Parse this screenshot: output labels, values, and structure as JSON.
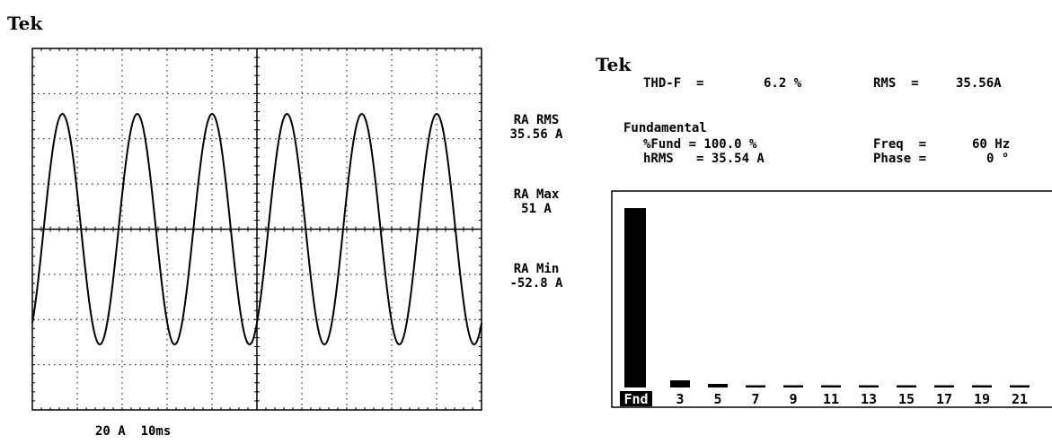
{
  "left_panel": {
    "title": "Tek",
    "scale_label": "20 A  10ms",
    "readouts": {
      "rms_label": "RA RMS",
      "rms_value": "35.56 A",
      "max_label": "RA Max",
      "max_value": "51 A",
      "min_label": "RA Min",
      "min_value": "-52.8 A"
    },
    "waveform": {
      "frequency_hz": 60,
      "amplitude_divisions": 2.55,
      "time_per_div_ms": 10,
      "volts_per_div": 20
    }
  },
  "right_panel": {
    "title": "Tek",
    "thd_label": "THD-F  =",
    "thd_value": "6.2 %",
    "rms_label": "RMS  =",
    "rms_value": "35.56A",
    "fundamental_label": "Fundamental",
    "fund_pct_label": "%Fund = 100.0 %",
    "hrms_label": "hRMS   = 35.54 A",
    "freq_label": "Freq  =",
    "freq_value": "60 Hz",
    "phase_label": "Phase =",
    "phase_value": "0 °"
  },
  "chart_data": {
    "type": "bar",
    "categories": [
      "Fnd",
      "3",
      "5",
      "7",
      "9",
      "11",
      "13",
      "15",
      "17",
      "19",
      "21"
    ],
    "values": [
      100,
      4.0,
      2.0,
      1.0,
      0.8,
      0.3,
      0.3,
      0.3,
      0.3,
      0.3,
      0.3
    ],
    "ylim": [
      0,
      105
    ]
  },
  "colors": {
    "background": "#ffffff",
    "foreground": "#000000"
  }
}
